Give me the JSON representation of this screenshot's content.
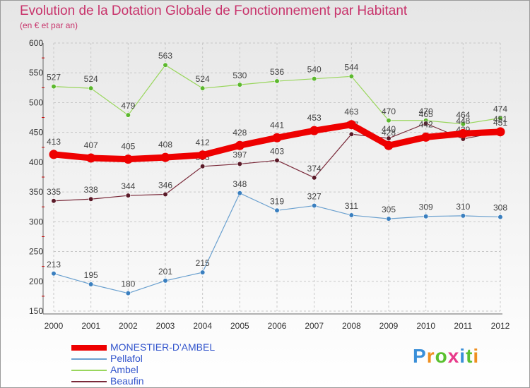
{
  "header": {
    "title": "Evolution de la Dotation Globale de Fonctionnement par Habitant",
    "subtitle": "(en € et par an)"
  },
  "logo": {
    "text": "Proxiti"
  },
  "chart_data": {
    "type": "line",
    "x": [
      "2000",
      "2001",
      "2002",
      "2003",
      "2004",
      "2005",
      "2006",
      "2007",
      "2008",
      "2009",
      "2010",
      "2011",
      "2012"
    ],
    "ylim": [
      150,
      600
    ],
    "yticks": [
      150,
      200,
      250,
      300,
      350,
      400,
      450,
      500,
      550,
      600
    ],
    "grid": true,
    "legend_position": "bottom-left",
    "series": [
      {
        "name": "Ambel",
        "color": "#99d65c",
        "marker": "#5cb82e",
        "values": [
          527,
          524,
          479,
          563,
          524,
          530,
          536,
          540,
          544,
          470,
          470,
          464,
          474
        ],
        "labels": [
          "527",
          "524",
          "479",
          "563",
          "524",
          "530",
          "536",
          "540",
          "544",
          "470",
          "470",
          "464",
          "474"
        ]
      },
      {
        "name": "Beaufin",
        "color": "#7a2a3a",
        "marker": "#5a1a28",
        "values": [
          335,
          338,
          344,
          346,
          393,
          397,
          403,
          374,
          447,
          440,
          465,
          439,
          451
        ],
        "labels": [
          "335",
          "338",
          "344",
          "346",
          "393",
          "397",
          "403",
          "374",
          "447",
          "440",
          "465",
          "439",
          "451"
        ]
      },
      {
        "name": "Pellafol",
        "color": "#6aa0cf",
        "marker": "#3a7fbf",
        "values": [
          213,
          195,
          180,
          201,
          215,
          348,
          319,
          327,
          311,
          305,
          309,
          310,
          308
        ],
        "labels": [
          "213",
          "195",
          "180",
          "201",
          "215",
          "348",
          "319",
          "327",
          "311",
          "305",
          "309",
          "310",
          "308"
        ]
      },
      {
        "name": "MONESTIER-D'AMBEL",
        "color": "#ee0000",
        "marker": "#ee0000",
        "values": [
          413,
          407,
          405,
          408,
          412,
          428,
          441,
          453,
          463,
          428,
          442,
          448,
          451
        ],
        "labels": [
          "413",
          "407",
          "405",
          "408",
          "412",
          "428",
          "441",
          "453",
          "463",
          "428",
          "442",
          "448",
          "451"
        ]
      }
    ]
  },
  "legend": {
    "items": [
      {
        "name": "MONESTIER-D'AMBEL",
        "color": "#ee0000",
        "text_color": "#3355cc"
      },
      {
        "name": "Pellafol",
        "color": "#6aa0cf",
        "text_color": "#3355cc"
      },
      {
        "name": "Ambel",
        "color": "#99d65c",
        "text_color": "#3355cc"
      },
      {
        "name": "Beaufin",
        "color": "#7a2a3a",
        "text_color": "#3355cc"
      }
    ]
  }
}
